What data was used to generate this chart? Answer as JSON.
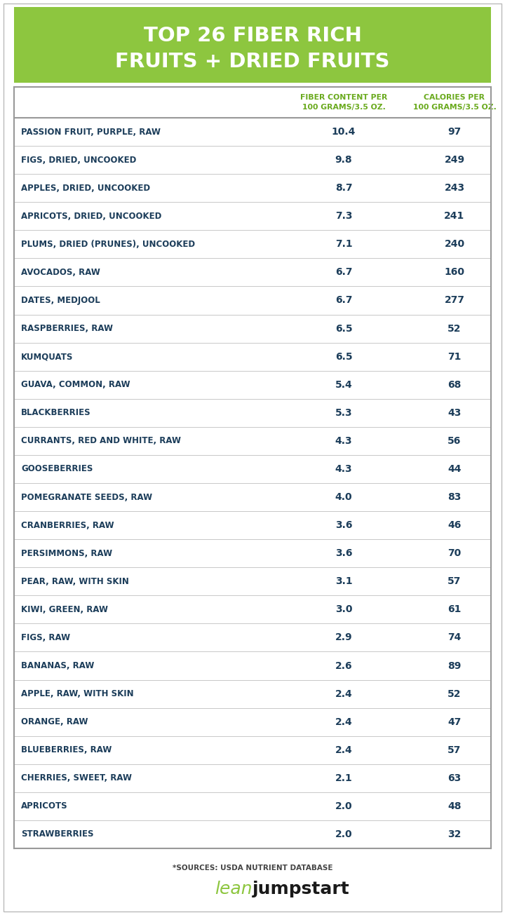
{
  "title_line1": "TOP 26 FIBER RICH",
  "title_line2": "FRUITS + DRIED FRUITS",
  "header_col1": "FIBER CONTENT PER\n100 GRAMS/3.5 OZ.",
  "header_col2": "CALORIES PER\n100 GRAMS/3.5 OZ.",
  "fruits": [
    "PASSION FRUIT, PURPLE, RAW",
    "FIGS, DRIED, UNCOOKED",
    "APPLES, DRIED, UNCOOKED",
    "APRICOTS, DRIED, UNCOOKED",
    "PLUMS, DRIED (PRUNES), UNCOOKED",
    "AVOCADOS, RAW",
    "DATES, MEDJOOL",
    "RASPBERRIES, RAW",
    "KUMQUATS",
    "GUAVA, COMMON, RAW",
    "BLACKBERRIES",
    "CURRANTS, RED AND WHITE, RAW",
    "GOOSEBERRIES",
    "POMEGRANATE SEEDS, RAW",
    "CRANBERRIES, RAW",
    "PERSIMMONS, RAW",
    "PEAR, RAW, WITH SKIN",
    "KIWI, GREEN, RAW",
    "FIGS, RAW",
    "BANANAS, RAW",
    "APPLE, RAW, WITH SKIN",
    "ORANGE, RAW",
    "BLUEBERRIES, RAW",
    "CHERRIES, SWEET, RAW",
    "APRICOTS",
    "STRAWBERRIES"
  ],
  "fiber": [
    10.4,
    9.8,
    8.7,
    7.3,
    7.1,
    6.7,
    6.7,
    6.5,
    6.5,
    5.4,
    5.3,
    4.3,
    4.3,
    4.0,
    3.6,
    3.6,
    3.1,
    3.0,
    2.9,
    2.6,
    2.4,
    2.4,
    2.4,
    2.1,
    2.0,
    2.0
  ],
  "calories": [
    97,
    249,
    243,
    241,
    240,
    160,
    277,
    52,
    71,
    68,
    43,
    56,
    44,
    83,
    46,
    70,
    57,
    61,
    74,
    89,
    52,
    47,
    57,
    63,
    48,
    32
  ],
  "header_bg": "#8dc63f",
  "title_color": "#ffffff",
  "header_text_color": "#6aaa1e",
  "fruit_text_color": "#1c3d5a",
  "value_text_color": "#1c3d5a",
  "bg_color": "#ffffff",
  "source_text": "*SOURCES: USDA NUTRIENT DATABASE",
  "brand_lean_color": "#8dc63f",
  "brand_jump_color": "#1a1a1a",
  "row_line_color": "#c8c8c8",
  "border_color": "#999999",
  "outer_border_color": "#bbbbbb"
}
